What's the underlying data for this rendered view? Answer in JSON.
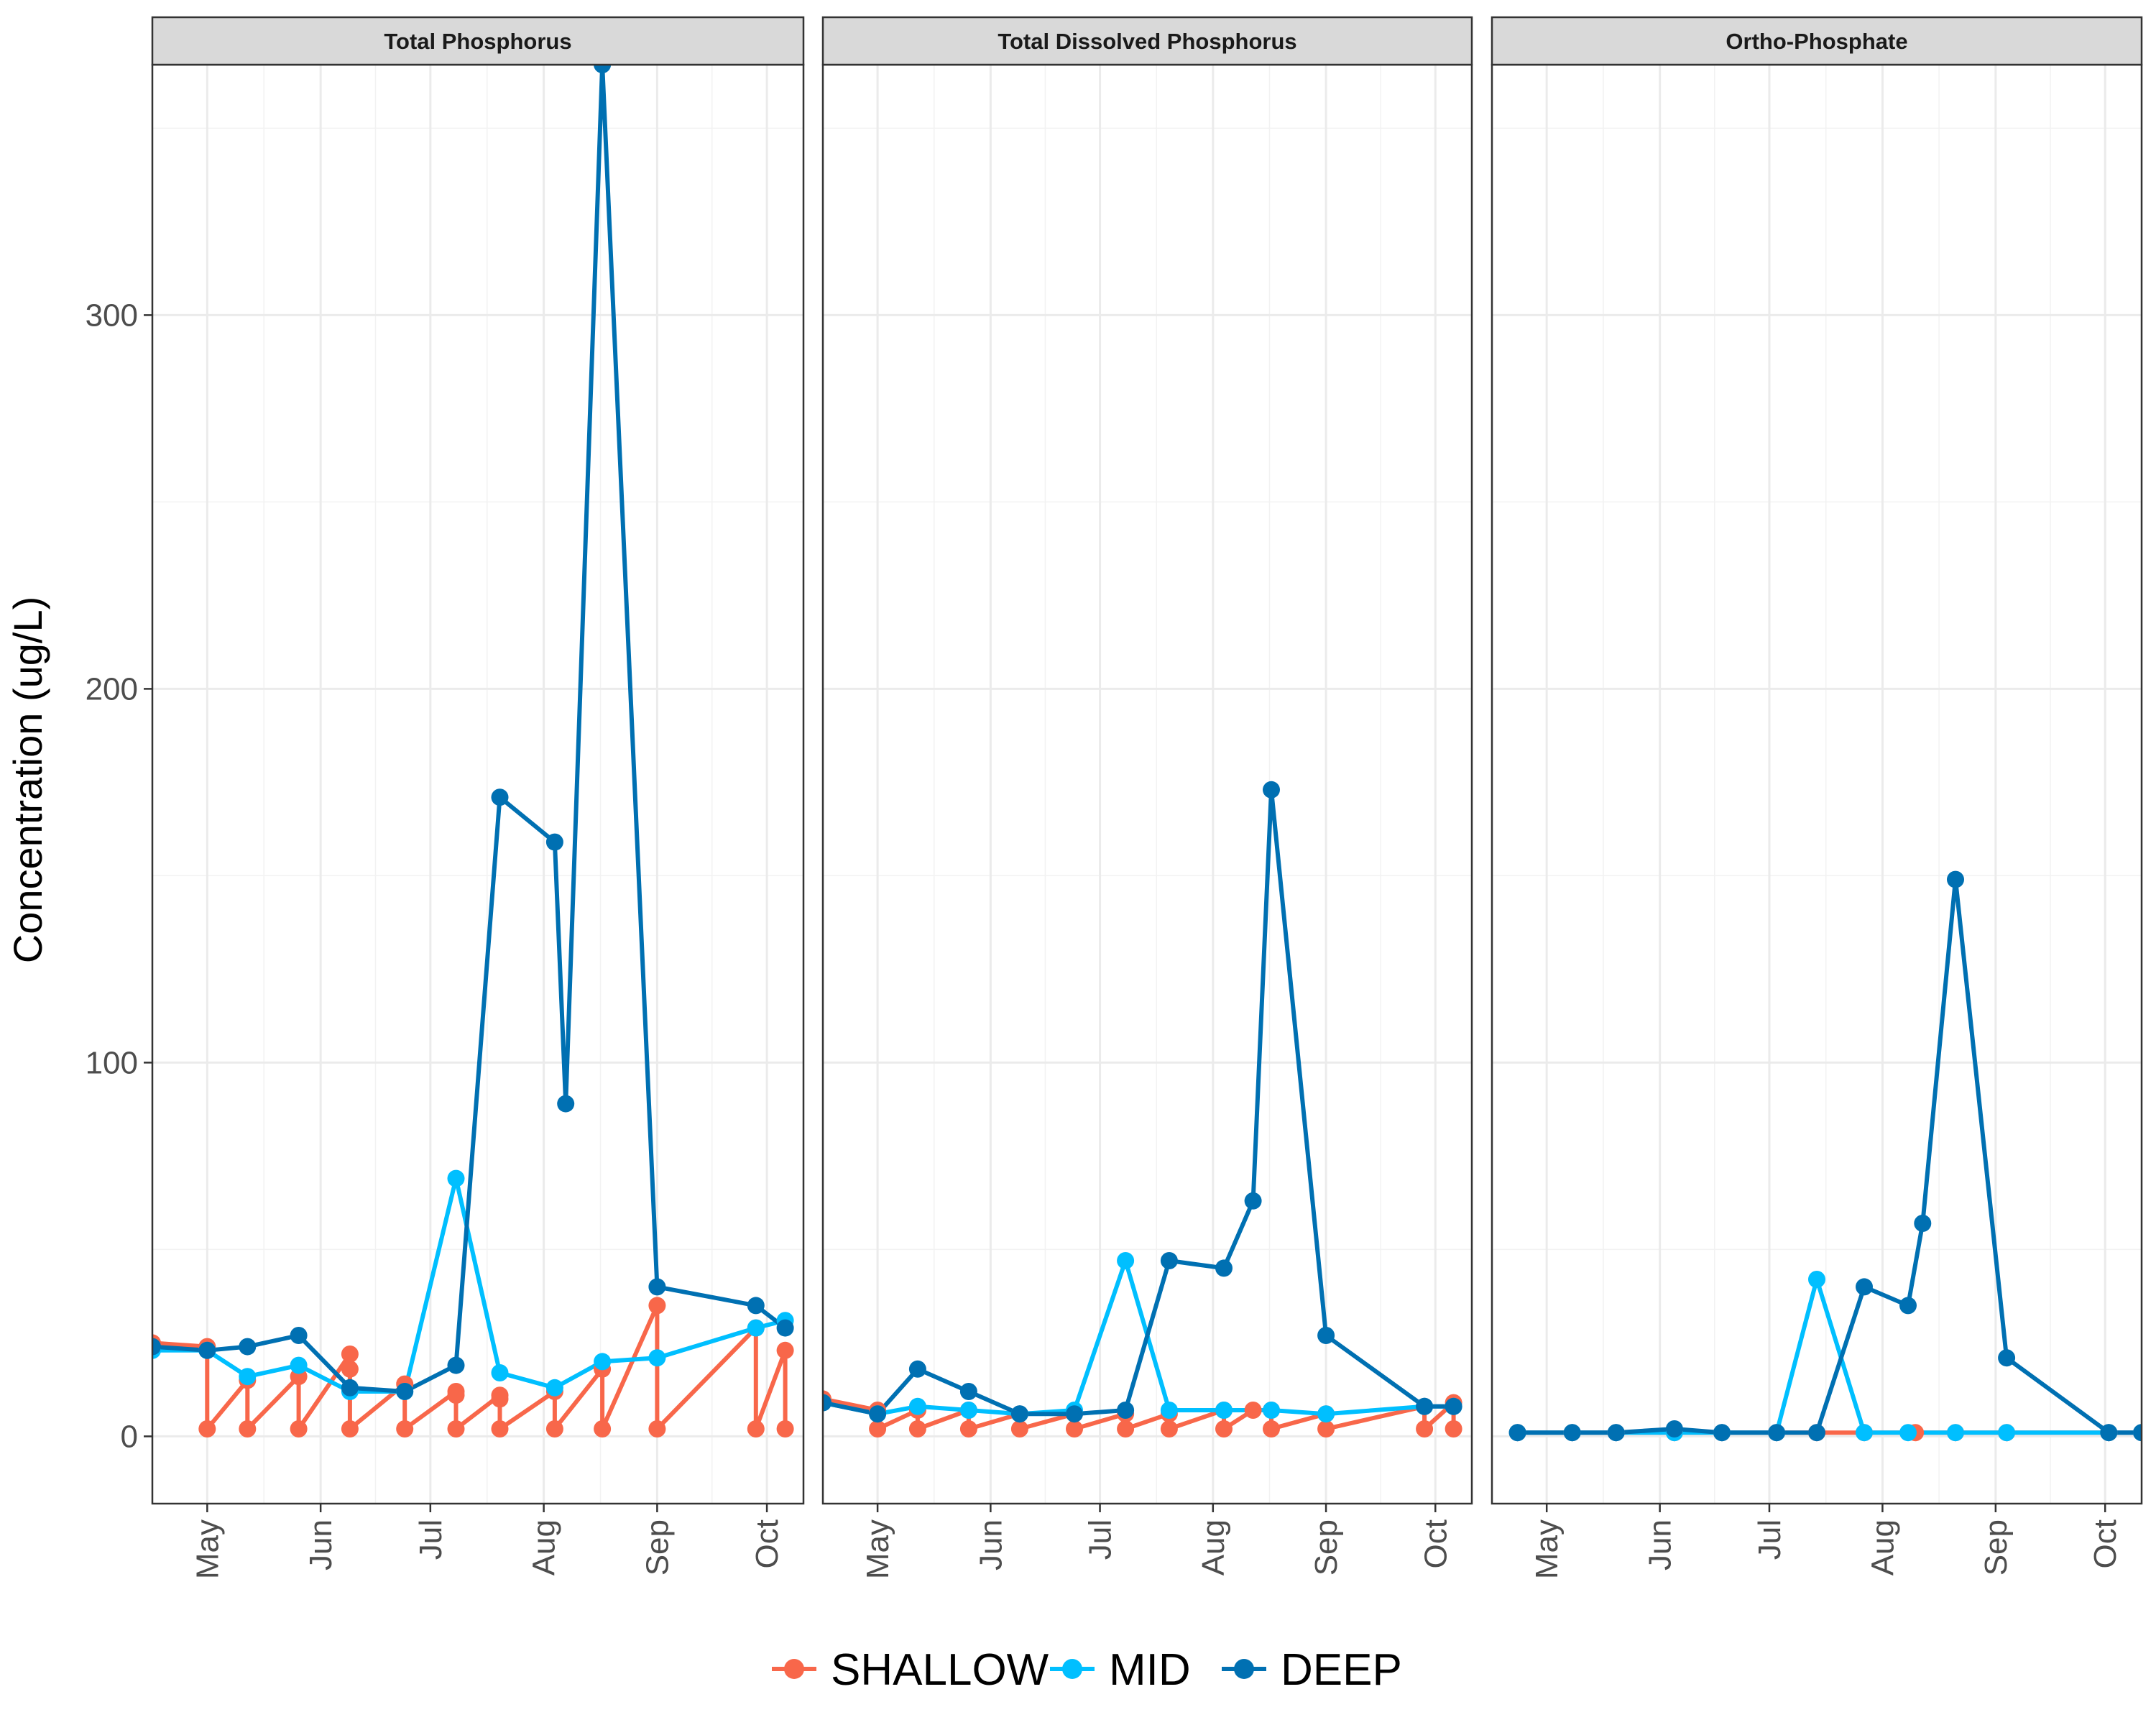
{
  "chart_data": {
    "type": "line",
    "facets": [
      "Total Phosphorus",
      "Total Dissolved Phosphorus",
      "Ortho-Phosphate"
    ],
    "ylabel": "Concentration (ug/L)",
    "xlabel": "",
    "ylim": [
      -18,
      367
    ],
    "yticks": [
      0,
      100,
      200,
      300
    ],
    "xlim": [
      "2019-04-16",
      "2019-10-11"
    ],
    "xticks": [
      {
        "label": "May",
        "date": "2019-05-01"
      },
      {
        "label": "Jun",
        "date": "2019-06-01"
      },
      {
        "label": "Jul",
        "date": "2019-07-01"
      },
      {
        "label": "Aug",
        "date": "2019-08-01"
      },
      {
        "label": "Sep",
        "date": "2019-09-01"
      },
      {
        "label": "Oct",
        "date": "2019-10-01"
      }
    ],
    "grid": true,
    "legend_position": "bottom",
    "series_order": [
      "SHALLOW",
      "MID",
      "DEEP"
    ],
    "colors": {
      "SHALLOW": "#F8674A",
      "MID": "#00BFFF",
      "DEEP": "#0070B2"
    },
    "panels": [
      {
        "facet": "Total Phosphorus",
        "series": [
          {
            "name": "SHALLOW",
            "points": [
              [
                "2019-04-16",
                25
              ],
              [
                "2019-05-01",
                24
              ],
              [
                "2019-05-01",
                2
              ],
              [
                "2019-05-12",
                15
              ],
              [
                "2019-05-12",
                2
              ],
              [
                "2019-05-26",
                16
              ],
              [
                "2019-05-26",
                2
              ],
              [
                "2019-06-09",
                22
              ],
              [
                "2019-06-09",
                18
              ],
              [
                "2019-06-09",
                2
              ],
              [
                "2019-06-24",
                14
              ],
              [
                "2019-06-24",
                2
              ],
              [
                "2019-07-08",
                12
              ],
              [
                "2019-07-08",
                11
              ],
              [
                "2019-07-08",
                2
              ],
              [
                "2019-07-20",
                11
              ],
              [
                "2019-07-20",
                10
              ],
              [
                "2019-07-20",
                2
              ],
              [
                "2019-08-04",
                12
              ],
              [
                "2019-08-04",
                2
              ],
              [
                "2019-08-17",
                18
              ],
              [
                "2019-08-17",
                2
              ],
              [
                "2019-09-01",
                35
              ],
              [
                "2019-09-01",
                2
              ],
              [
                "2019-09-28",
                29
              ],
              [
                "2019-09-28",
                2
              ],
              [
                "2019-10-06",
                23
              ],
              [
                "2019-10-06",
                2
              ]
            ]
          },
          {
            "name": "MID",
            "points": [
              [
                "2019-04-16",
                23
              ],
              [
                "2019-05-01",
                23
              ],
              [
                "2019-05-12",
                16
              ],
              [
                "2019-05-26",
                19
              ],
              [
                "2019-06-09",
                12
              ],
              [
                "2019-06-24",
                12
              ],
              [
                "2019-07-08",
                69
              ],
              [
                "2019-07-20",
                17
              ],
              [
                "2019-08-04",
                13
              ],
              [
                "2019-08-17",
                20
              ],
              [
                "2019-09-01",
                21
              ],
              [
                "2019-09-28",
                29
              ],
              [
                "2019-10-06",
                31
              ]
            ]
          },
          {
            "name": "DEEP",
            "points": [
              [
                "2019-04-16",
                24
              ],
              [
                "2019-05-01",
                23
              ],
              [
                "2019-05-12",
                24
              ],
              [
                "2019-05-26",
                27
              ],
              [
                "2019-06-09",
                13
              ],
              [
                "2019-06-24",
                12
              ],
              [
                "2019-07-08",
                19
              ],
              [
                "2019-07-20",
                171
              ],
              [
                "2019-08-04",
                159
              ],
              [
                "2019-08-07",
                89
              ],
              [
                "2019-08-17",
                367
              ],
              [
                "2019-09-01",
                40
              ],
              [
                "2019-09-28",
                35
              ],
              [
                "2019-10-06",
                29
              ]
            ]
          }
        ]
      },
      {
        "facet": "Total Dissolved Phosphorus",
        "series": [
          {
            "name": "SHALLOW",
            "points": [
              [
                "2019-04-16",
                10
              ],
              [
                "2019-05-01",
                7
              ],
              [
                "2019-05-01",
                2
              ],
              [
                "2019-05-12",
                7
              ],
              [
                "2019-05-12",
                2
              ],
              [
                "2019-05-26",
                7
              ],
              [
                "2019-05-26",
                2
              ],
              [
                "2019-06-09",
                6
              ],
              [
                "2019-06-09",
                2
              ],
              [
                "2019-06-24",
                6
              ],
              [
                "2019-06-24",
                2
              ],
              [
                "2019-07-08",
                6
              ],
              [
                "2019-07-08",
                2
              ],
              [
                "2019-07-20",
                6
              ],
              [
                "2019-07-20",
                2
              ],
              [
                "2019-08-04",
                7
              ],
              [
                "2019-08-04",
                2
              ],
              [
                "2019-08-12",
                7
              ],
              [
                "2019-08-17",
                7
              ],
              [
                "2019-08-17",
                2
              ],
              [
                "2019-09-01",
                6
              ],
              [
                "2019-09-01",
                2
              ],
              [
                "2019-09-28",
                8
              ],
              [
                "2019-09-28",
                2
              ],
              [
                "2019-10-06",
                9
              ],
              [
                "2019-10-06",
                2
              ]
            ]
          },
          {
            "name": "MID",
            "points": [
              [
                "2019-04-16",
                9
              ],
              [
                "2019-05-01",
                6
              ],
              [
                "2019-05-12",
                8
              ],
              [
                "2019-05-26",
                7
              ],
              [
                "2019-06-09",
                6
              ],
              [
                "2019-06-24",
                7
              ],
              [
                "2019-07-08",
                47
              ],
              [
                "2019-07-20",
                7
              ],
              [
                "2019-08-04",
                7
              ],
              [
                "2019-08-17",
                7
              ],
              [
                "2019-09-01",
                6
              ],
              [
                "2019-09-28",
                8
              ],
              [
                "2019-10-06",
                8
              ]
            ]
          },
          {
            "name": "DEEP",
            "points": [
              [
                "2019-04-16",
                9
              ],
              [
                "2019-05-01",
                6
              ],
              [
                "2019-05-12",
                18
              ],
              [
                "2019-05-26",
                12
              ],
              [
                "2019-06-09",
                6
              ],
              [
                "2019-06-24",
                6
              ],
              [
                "2019-07-08",
                7
              ],
              [
                "2019-07-20",
                47
              ],
              [
                "2019-08-04",
                45
              ],
              [
                "2019-08-12",
                63
              ],
              [
                "2019-08-17",
                173
              ],
              [
                "2019-09-01",
                27
              ],
              [
                "2019-09-28",
                8
              ],
              [
                "2019-10-06",
                8
              ]
            ]
          }
        ]
      },
      {
        "facet": "Ortho-Phosphate",
        "series": [
          {
            "name": "SHALLOW",
            "points": [
              [
                "2019-04-23",
                1
              ],
              [
                "2019-05-08",
                1
              ],
              [
                "2019-05-20",
                1
              ],
              [
                "2019-06-05",
                1
              ],
              [
                "2019-06-18",
                1
              ],
              [
                "2019-07-03",
                1
              ],
              [
                "2019-07-14",
                1
              ],
              [
                "2019-07-27",
                1
              ],
              [
                "2019-08-10",
                1
              ],
              [
                "2019-08-21",
                1
              ],
              [
                "2019-09-04",
                1
              ],
              [
                "2019-10-02",
                1
              ],
              [
                "2019-10-11",
                1
              ]
            ]
          },
          {
            "name": "MID",
            "points": [
              [
                "2019-04-23",
                1
              ],
              [
                "2019-05-08",
                1
              ],
              [
                "2019-05-20",
                1
              ],
              [
                "2019-06-05",
                1
              ],
              [
                "2019-06-18",
                1
              ],
              [
                "2019-07-03",
                1
              ],
              [
                "2019-07-14",
                42
              ],
              [
                "2019-07-27",
                1
              ],
              [
                "2019-08-08",
                1
              ],
              [
                "2019-08-21",
                1
              ],
              [
                "2019-09-04",
                1
              ],
              [
                "2019-10-02",
                1
              ],
              [
                "2019-10-11",
                1
              ]
            ]
          },
          {
            "name": "DEEP",
            "points": [
              [
                "2019-04-23",
                1
              ],
              [
                "2019-05-08",
                1
              ],
              [
                "2019-05-20",
                1
              ],
              [
                "2019-06-05",
                2
              ],
              [
                "2019-06-18",
                1
              ],
              [
                "2019-07-03",
                1
              ],
              [
                "2019-07-14",
                1
              ],
              [
                "2019-07-27",
                40
              ],
              [
                "2019-08-08",
                35
              ],
              [
                "2019-08-12",
                57
              ],
              [
                "2019-08-21",
                149
              ],
              [
                "2019-09-04",
                21
              ],
              [
                "2019-10-02",
                1
              ],
              [
                "2019-10-11",
                1
              ]
            ]
          }
        ]
      }
    ]
  }
}
